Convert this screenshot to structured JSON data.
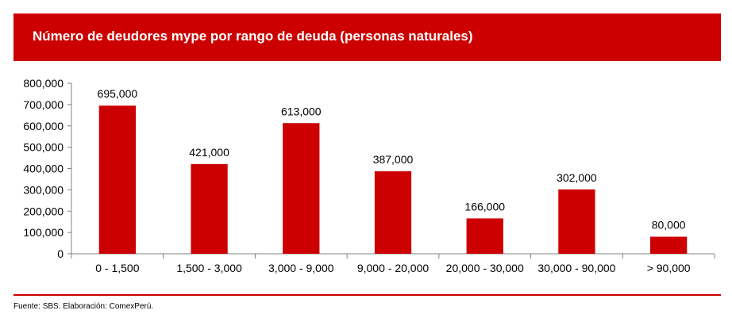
{
  "chart_data": {
    "type": "bar",
    "title": "Número de deudores mype por rango de deuda (personas naturales)",
    "categories": [
      "0 - 1,500",
      "1,500 - 3,000",
      "3,000 - 9,000",
      "9,000 - 20,000",
      "20,000 - 30,000",
      "30,000 - 90,000",
      "> 90,000"
    ],
    "values": [
      695000,
      421000,
      613000,
      387000,
      166000,
      302000,
      80000
    ],
    "value_labels": [
      "695,000",
      "421,000",
      "613,000",
      "387,000",
      "166,000",
      "302,000",
      "80,000"
    ],
    "y_ticks": [
      0,
      100000,
      200000,
      300000,
      400000,
      500000,
      600000,
      700000,
      800000
    ],
    "y_tick_labels": [
      "0",
      "100,000",
      "200,000",
      "300,000",
      "400,000",
      "500,000",
      "600,000",
      "700,000",
      "800,000"
    ],
    "ylim": [
      0,
      800000
    ],
    "xlabel": "",
    "ylabel": "",
    "grid": false,
    "legend": "none",
    "bar_color": "#cc0000"
  },
  "header": {
    "title": "Número de deudores mype por rango de deuda (personas naturales)",
    "color": "#cc0000"
  },
  "footer": {
    "source": "Fuente: SBS. Elaboración: ComexPerú."
  }
}
